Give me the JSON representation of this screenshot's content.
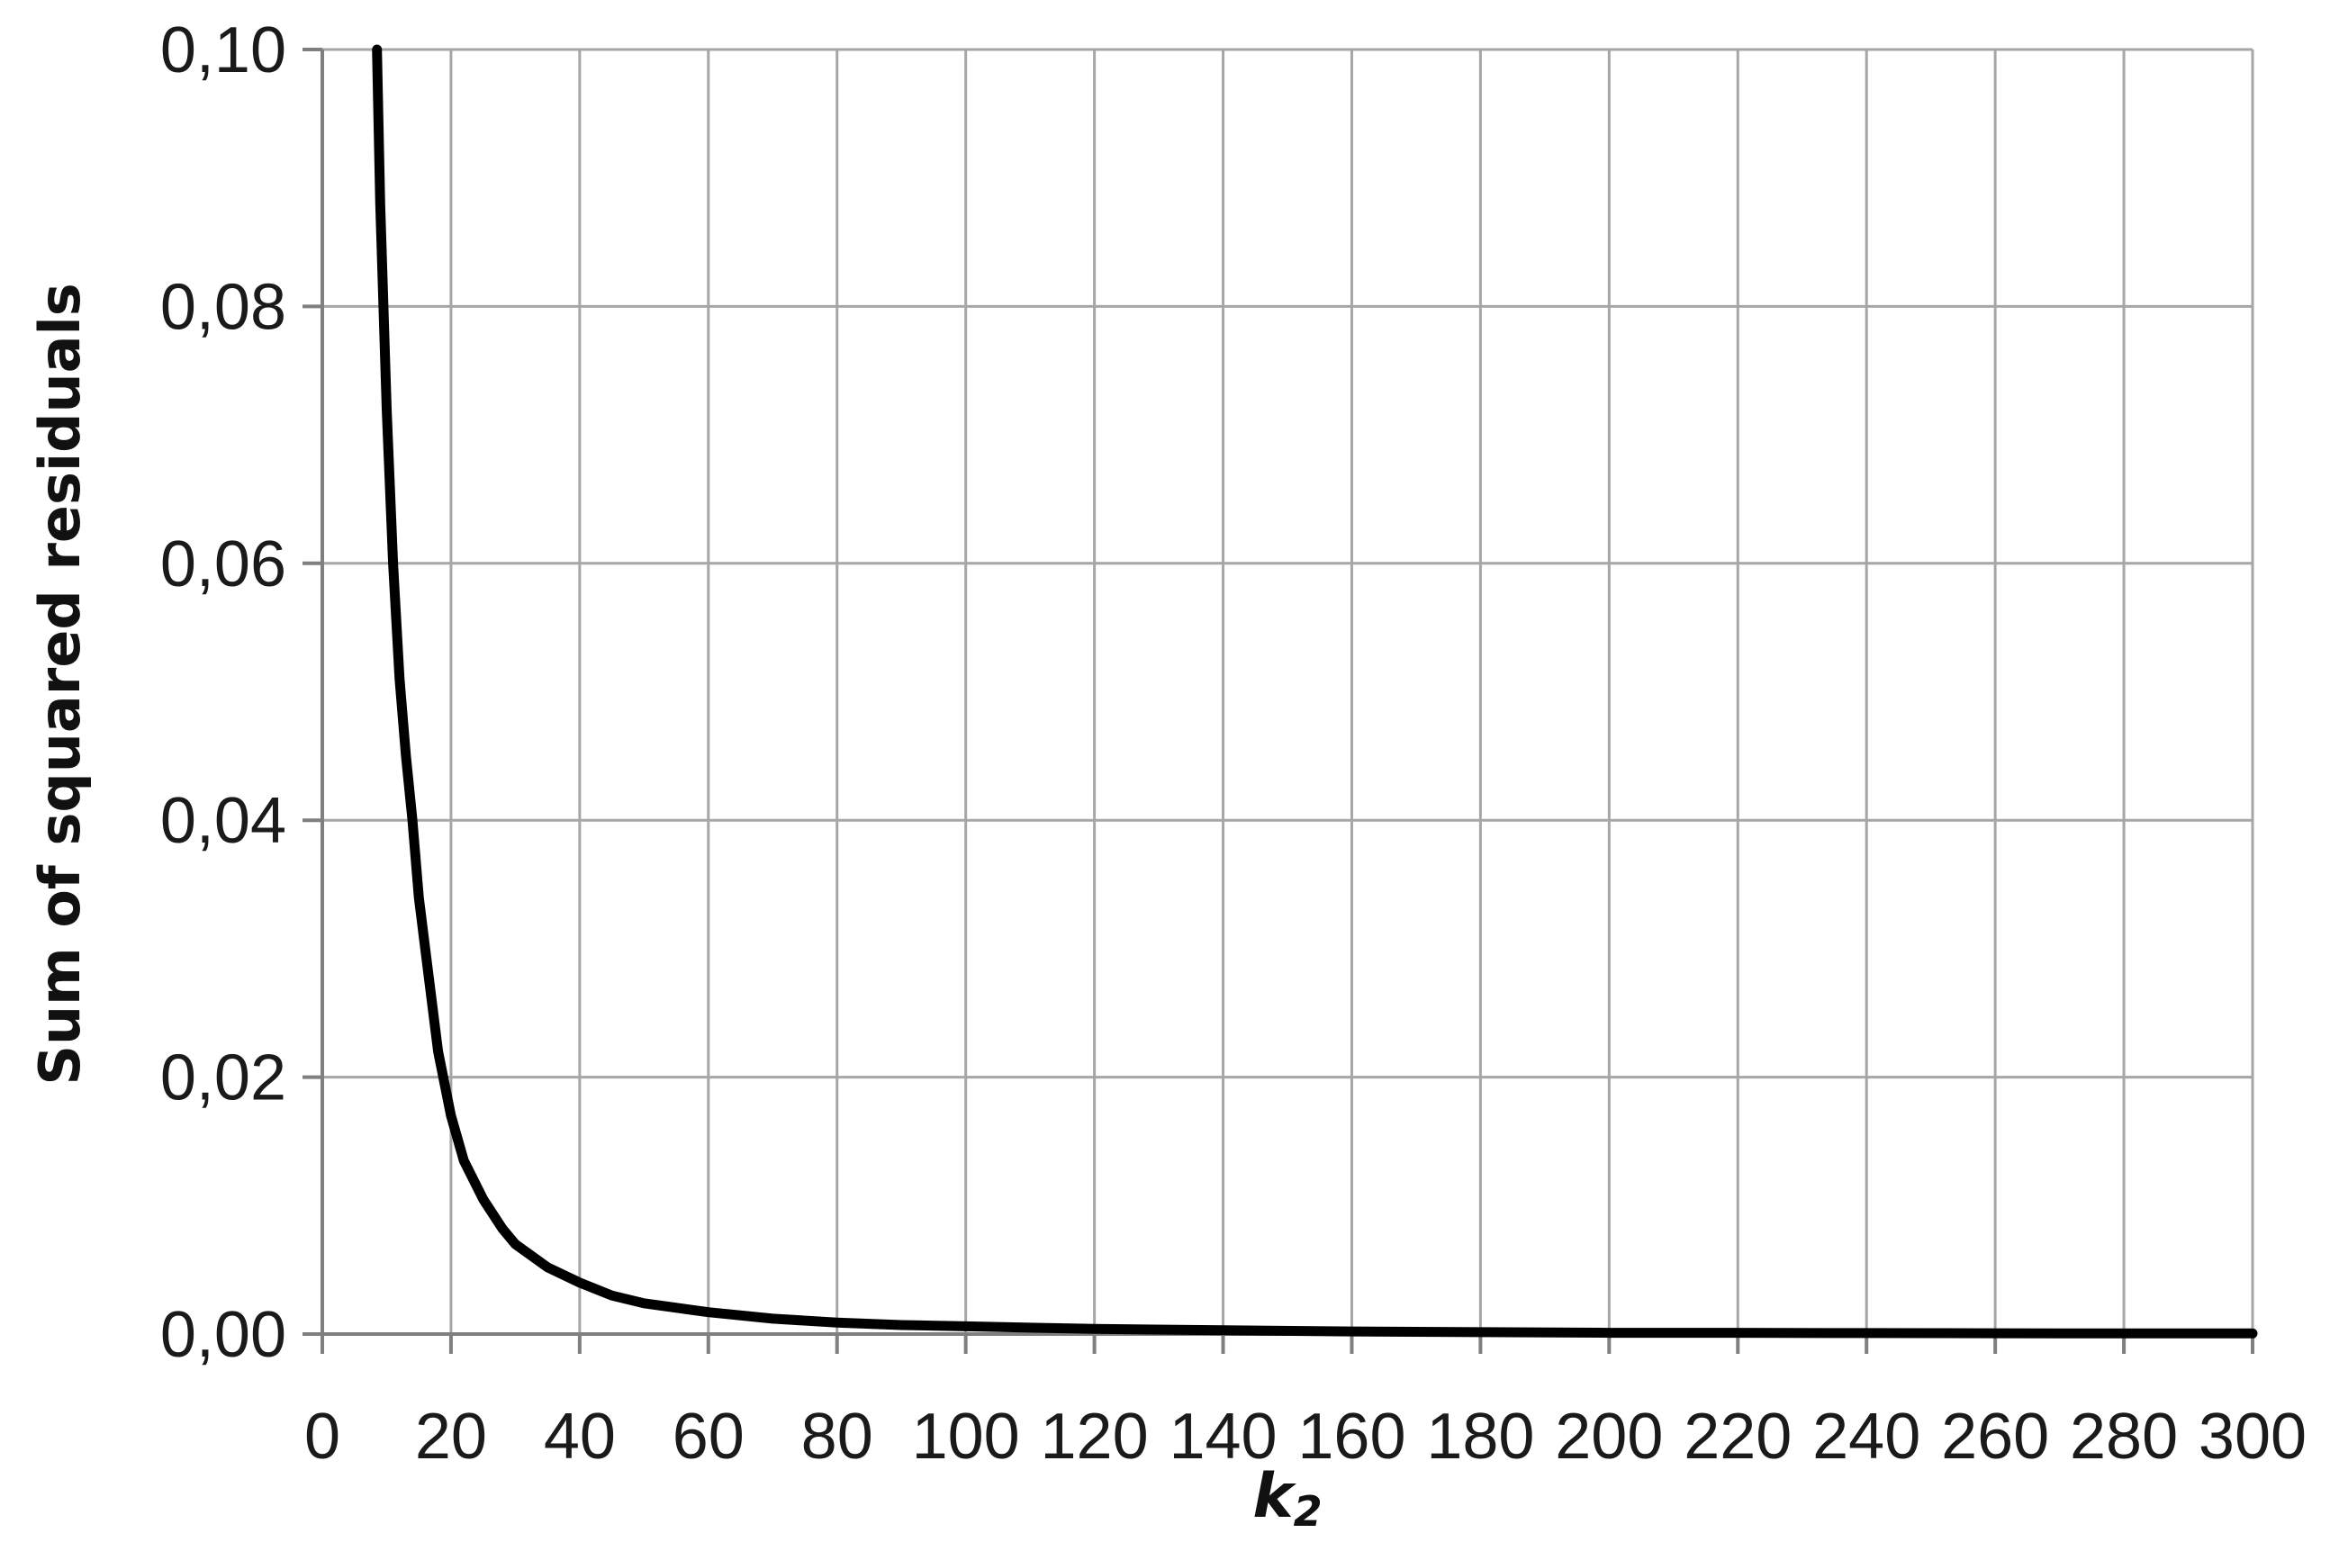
{
  "chart_data": {
    "type": "line",
    "title": "",
    "xlabel_main": "k",
    "xlabel_sub": "2",
    "ylabel": "Sum of squared residuals",
    "xlim": [
      0,
      300
    ],
    "ylim": [
      0,
      0.1
    ],
    "x_ticks": [
      "0",
      "20",
      "40",
      "60",
      "80",
      "100",
      "120",
      "140",
      "160",
      "180",
      "200",
      "220",
      "240",
      "260",
      "280",
      "300"
    ],
    "y_ticks": [
      "0,00",
      "0,02",
      "0,04",
      "0,06",
      "0,08",
      "0,10"
    ],
    "grid": true,
    "legend": "none",
    "series": [
      {
        "color": "#000000",
        "x": [
          8.5,
          9,
          10,
          11,
          12,
          13,
          14,
          15,
          16,
          18,
          20,
          22,
          25,
          28,
          30,
          35,
          40,
          45,
          50,
          60,
          70,
          80,
          90,
          100,
          120,
          140,
          160,
          180,
          200,
          220,
          240,
          260,
          280,
          300
        ],
        "y": [
          0.1,
          0.088,
          0.072,
          0.06,
          0.051,
          0.045,
          0.04,
          0.034,
          0.03,
          0.022,
          0.017,
          0.0135,
          0.0105,
          0.0082,
          0.007,
          0.0052,
          0.004,
          0.003,
          0.0024,
          0.0017,
          0.0012,
          0.0009,
          0.0007,
          0.0006,
          0.0004,
          0.0003,
          0.0002,
          0.00015,
          0.0001,
          0.0001,
          8e-05,
          6e-05,
          5e-05,
          5e-05
        ]
      }
    ]
  }
}
